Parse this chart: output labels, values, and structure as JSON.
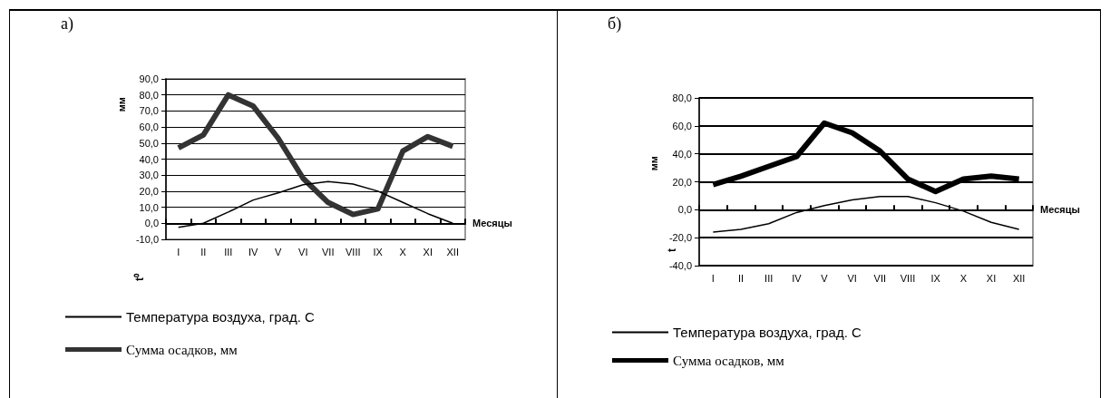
{
  "chart_data": [
    {
      "type": "line",
      "title": "а)",
      "xlabel": "Месяцы",
      "ylabel": "мм",
      "annotations": [
        "t⁰"
      ],
      "categories": [
        "I",
        "II",
        "III",
        "IV",
        "V",
        "VI",
        "VII",
        "VIII",
        "IX",
        "X",
        "XI",
        "XII"
      ],
      "series": [
        {
          "name": "Температура воздуха, град. С",
          "color": "#000000",
          "values": [
            -2.5,
            0,
            7,
            14.5,
            19,
            24,
            26,
            24.5,
            20,
            13,
            6,
            0
          ]
        },
        {
          "name": "Сумма осадков, мм",
          "color": "#333333",
          "values": [
            47,
            55,
            80,
            73,
            53,
            28,
            13,
            5.5,
            9,
            45,
            54,
            48
          ]
        }
      ],
      "ylim": [
        -10,
        90
      ],
      "yticks": [
        {
          "value": -10,
          "label": "-10,0"
        },
        {
          "value": 0,
          "label": "0,0"
        },
        {
          "value": 10,
          "label": "10,0"
        },
        {
          "value": 20,
          "label": "20,0"
        },
        {
          "value": 30,
          "label": "30,0"
        },
        {
          "value": 40,
          "label": "40,0"
        },
        {
          "value": 50,
          "label": "50,0"
        },
        {
          "value": 60,
          "label": "60,0"
        },
        {
          "value": 70,
          "label": "70,0"
        },
        {
          "value": 80,
          "label": "80,0"
        },
        {
          "value": 90,
          "label": "90,0"
        }
      ],
      "grid": "y",
      "legend": "bottom left",
      "marker": "none"
    },
    {
      "type": "line",
      "title": "б)",
      "xlabel": "Месяцы",
      "ylabel": "мм",
      "annotations": [
        "t"
      ],
      "categories": [
        "I",
        "II",
        "III",
        "IV",
        "V",
        "VI",
        "VII",
        "VIII",
        "IX",
        "X",
        "XI",
        "XII"
      ],
      "series": [
        {
          "name": "Температура воздуха, град. С",
          "color": "#000000",
          "values": [
            -16,
            -14,
            -10,
            -2,
            3,
            7,
            9.5,
            9.5,
            5,
            -1,
            -9,
            -14
          ]
        },
        {
          "name": "Сумма осадков, мм",
          "color": "#000000",
          "values": [
            18,
            24,
            31,
            38,
            62,
            55,
            42,
            22,
            13,
            22,
            24,
            22
          ]
        }
      ],
      "ylim": [
        -40,
        80
      ],
      "yticks": [
        {
          "value": -40,
          "label": "-40,0"
        },
        {
          "value": -20,
          "label": "-20,0"
        },
        {
          "value": 0,
          "label": "0,0"
        },
        {
          "value": 20,
          "label": "20,0"
        },
        {
          "value": 40,
          "label": "40,0"
        },
        {
          "value": 60,
          "label": "60,0"
        },
        {
          "value": 80,
          "label": "80,0"
        }
      ],
      "grid": "y",
      "legend": "bottom left",
      "marker": "none"
    }
  ]
}
